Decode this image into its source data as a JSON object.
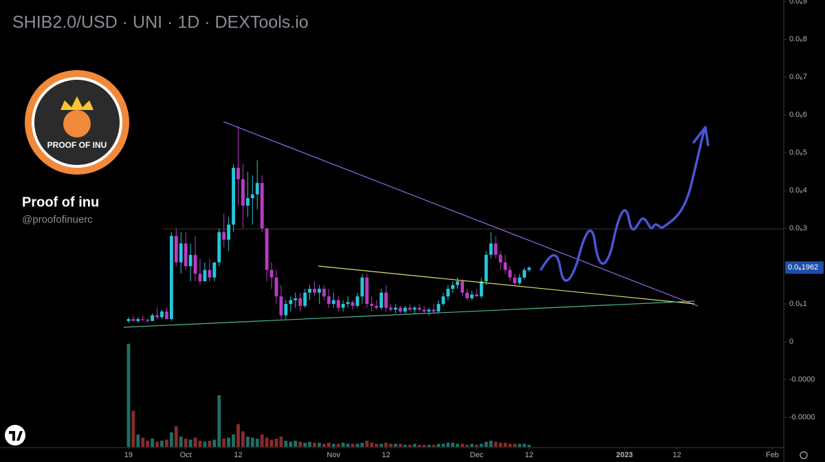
{
  "chart_data": {
    "type": "candlestick",
    "title": "SHIB2.0/USD · UNI · 1D · DEXTools.io",
    "brand": {
      "name": "Proof of inu",
      "handle": "@proofofinuerc",
      "logo_text": "PROOF OF INU"
    },
    "up_color": "#26c6da",
    "down_color": "#b93bc4",
    "volume_up_color": "#1f6f66",
    "volume_down_color": "#8a2b2b",
    "xlim": [
      -1,
      137.4
    ],
    "xticks": [
      {
        "value": 0,
        "label": "19"
      },
      {
        "value": 12,
        "label": "Oct"
      },
      {
        "value": 23,
        "label": "12"
      },
      {
        "value": 43,
        "label": "Nov"
      },
      {
        "value": 54,
        "label": "12"
      },
      {
        "value": 73,
        "label": "Dec"
      },
      {
        "value": 84,
        "label": "12"
      },
      {
        "value": 104,
        "label": "2023"
      },
      {
        "value": 115,
        "label": "12"
      },
      {
        "value": 135,
        "label": "Feb"
      }
    ],
    "ylim": [
      -2.78e-07,
      9.04e-07
    ],
    "yticks": [
      {
        "value": 9e-07,
        "label": "0.0₆9"
      },
      {
        "value": 8e-07,
        "label": "0.0₆8"
      },
      {
        "value": 7e-07,
        "label": "0.0₆7"
      },
      {
        "value": 6e-07,
        "label": "0.0₆6"
      },
      {
        "value": 5e-07,
        "label": "0.0₆5"
      },
      {
        "value": 4e-07,
        "label": "0.0₆4"
      },
      {
        "value": 3e-07,
        "label": "0.0₆3"
      },
      {
        "value": 1e-07,
        "label": "0.0₆1"
      },
      0,
      {
        "value": -1e-07,
        "label": "-0.0000"
      },
      {
        "value": -2e-07,
        "label": "-0.0000"
      }
    ],
    "last_price": {
      "value": 1.962e-07,
      "label": "0.0₆1962"
    },
    "candles": [
      [
        5.5e-08,
        6.5e-08,
        5e-08,
        6e-08
      ],
      [
        6e-08,
        7e-08,
        5.5e-08,
        5.5e-08
      ],
      [
        5.5e-08,
        6.5e-08,
        5e-08,
        6e-08
      ],
      [
        6e-08,
        7e-08,
        5.5e-08,
        5.8e-08
      ],
      [
        5.8e-08,
        6.2e-08,
        5e-08,
        5.5e-08
      ],
      [
        5.5e-08,
        7.5e-08,
        5.5e-08,
        7e-08
      ],
      [
        7e-08,
        9e-08,
        6e-08,
        6.5e-08
      ],
      [
        6.5e-08,
        8.5e-08,
        6e-08,
        8e-08
      ],
      [
        8e-08,
        9e-08,
        6e-08,
        6e-08
      ],
      [
        6e-08,
        2.9e-07,
        5.5e-08,
        2.8e-07
      ],
      [
        2.8e-07,
        3e-07,
        2e-07,
        2.1e-07
      ],
      [
        2.1e-07,
        2.9e-07,
        1.8e-07,
        2.6e-07
      ],
      [
        2.6e-07,
        2.9e-07,
        1.9e-07,
        2e-07
      ],
      [
        2e-07,
        2.6e-07,
        1.6e-07,
        2.3e-07
      ],
      [
        2.3e-07,
        2.8e-07,
        1.6e-07,
        1.8e-07
      ],
      [
        1.8e-07,
        2.2e-07,
        1.5e-07,
        1.6e-07
      ],
      [
        1.6e-07,
        2.1e-07,
        1.6e-07,
        1.9e-07
      ],
      [
        1.9e-07,
        2.2e-07,
        1.6e-07,
        1.7e-07
      ],
      [
        1.7e-07,
        2.1e-07,
        1.6e-07,
        2.1e-07
      ],
      [
        2.1e-07,
        3e-07,
        2e-07,
        2.9e-07
      ],
      [
        2.9e-07,
        3.4e-07,
        2.5e-07,
        2.7e-07
      ],
      [
        2.7e-07,
        3.3e-07,
        2.4e-07,
        3.1e-07
      ],
      [
        3.1e-07,
        4.7e-07,
        2.9e-07,
        4.6e-07
      ],
      [
        4.6e-07,
        5.7e-07,
        3.6e-07,
        4.3e-07
      ],
      [
        4.3e-07,
        4.7e-07,
        3e-07,
        3.6e-07
      ],
      [
        3.6e-07,
        4.5e-07,
        3.3e-07,
        3.8e-07
      ],
      [
        3.8e-07,
        4.4e-07,
        3.1e-07,
        3.9e-07
      ],
      [
        3.9e-07,
        4.8e-07,
        3.5e-07,
        4.2e-07
      ],
      [
        4.2e-07,
        4.4e-07,
        2.9e-07,
        3e-07
      ],
      [
        3e-07,
        3e-07,
        1.6e-07,
        1.9e-07
      ],
      [
        1.9e-07,
        2.1e-07,
        1.4e-07,
        1.7e-07
      ],
      [
        1.7e-07,
        1.9e-07,
        1e-07,
        1.2e-07
      ],
      [
        1.2e-07,
        1.5e-07,
        6e-08,
        7e-08
      ],
      [
        7e-08,
        1.1e-07,
        6e-08,
        1e-07
      ],
      [
        1e-07,
        1.2e-07,
        8e-08,
        1.1e-07
      ],
      [
        1.1e-07,
        1.3e-07,
        9e-08,
        1.15e-07
      ],
      [
        1.15e-07,
        1.3e-07,
        8e-08,
        9.5e-08
      ],
      [
        9.5e-08,
        1.4e-07,
        9e-08,
        1.3e-07
      ],
      [
        1.3e-07,
        1.5e-07,
        1.1e-07,
        1.4e-07
      ],
      [
        1.4e-07,
        1.6e-07,
        1.2e-07,
        1.3e-07
      ],
      [
        1.3e-07,
        1.5e-07,
        1e-07,
        1.4e-07
      ],
      [
        1.4e-07,
        1.5e-07,
        1.1e-07,
        1.2e-07
      ],
      [
        1.2e-07,
        1.4e-07,
        9e-08,
        1e-07
      ],
      [
        1e-07,
        1.3e-07,
        9e-08,
        1.1e-07
      ],
      [
        1.1e-07,
        1.2e-07,
        8e-08,
        9e-08
      ],
      [
        9e-08,
        1.1e-07,
        8e-08,
        1e-07
      ],
      [
        1e-07,
        1.2e-07,
        9e-08,
        1.05e-07
      ],
      [
        1.05e-07,
        1.1e-07,
        8.5e-08,
        9.5e-08
      ],
      [
        9.5e-08,
        1.3e-07,
        9e-08,
        1.2e-07
      ],
      [
        1.2e-07,
        1.8e-07,
        1e-07,
        1.7e-07
      ],
      [
        1.7e-07,
        1.8e-07,
        9e-08,
        1e-07
      ],
      [
        1e-07,
        1.2e-07,
        8e-08,
        9.5e-08
      ],
      [
        9.5e-08,
        1.1e-07,
        8.5e-08,
        9e-08
      ],
      [
        9e-08,
        1.4e-07,
        8.5e-08,
        1.3e-07
      ],
      [
        1.3e-07,
        1.5e-07,
        8e-08,
        9e-08
      ],
      [
        9e-08,
        1e-07,
        8e-08,
        8.5e-08
      ],
      [
        8.5e-08,
        1e-07,
        7.5e-08,
        9e-08
      ],
      [
        9e-08,
        9.5e-08,
        7.5e-08,
        8e-08
      ],
      [
        8e-08,
        9.5e-08,
        7.5e-08,
        9e-08
      ],
      [
        9e-08,
        1e-07,
        8e-08,
        8.5e-08
      ],
      [
        8.5e-08,
        9.5e-08,
        7.5e-08,
        9e-08
      ],
      [
        9e-08,
        1e-07,
        8e-08,
        8.5e-08
      ],
      [
        8.5e-08,
        9.5e-08,
        7.5e-08,
        8e-08
      ],
      [
        8e-08,
        9e-08,
        7e-08,
        8.5e-08
      ],
      [
        8.5e-08,
        1e-07,
        7.5e-08,
        8e-08
      ],
      [
        8e-08,
        1.1e-07,
        7.5e-08,
        1e-07
      ],
      [
        1e-07,
        1.3e-07,
        9.5e-08,
        1.2e-07
      ],
      [
        1.2e-07,
        1.5e-07,
        1.1e-07,
        1.4e-07
      ],
      [
        1.4e-07,
        1.6e-07,
        1.3e-07,
        1.5e-07
      ],
      [
        1.5e-07,
        1.7e-07,
        1.4e-07,
        1.6e-07
      ],
      [
        1.6e-07,
        1.65e-07,
        1.2e-07,
        1.3e-07
      ],
      [
        1.3e-07,
        1.4e-07,
        1.1e-07,
        1.15e-07
      ],
      [
        1.15e-07,
        1.35e-07,
        1.1e-07,
        1.25e-07
      ],
      [
        1.25e-07,
        1.4e-07,
        1.2e-07,
        1.2e-07
      ],
      [
        1.2e-07,
        1.7e-07,
        1.15e-07,
        1.6e-07
      ],
      [
        1.6e-07,
        2.4e-07,
        1.5e-07,
        2.3e-07
      ],
      [
        2.3e-07,
        2.9e-07,
        2.2e-07,
        2.6e-07
      ],
      [
        2.6e-07,
        2.8e-07,
        2.2e-07,
        2.3e-07
      ],
      [
        2.3e-07,
        2.4e-07,
        1.9e-07,
        2.1e-07
      ],
      [
        2.1e-07,
        2.3e-07,
        1.8e-07,
        1.9e-07
      ],
      [
        1.9e-07,
        2e-07,
        1.6e-07,
        1.7e-07
      ],
      [
        1.7e-07,
        1.8e-07,
        1.5e-07,
        1.55e-07
      ],
      [
        1.55e-07,
        1.8e-07,
        1.5e-07,
        1.7e-07
      ],
      [
        1.7e-07,
        1.95e-07,
        1.65e-07,
        1.9e-07
      ],
      [
        1.9e-07,
        2e-07,
        1.85e-07,
        1.96e-07
      ]
    ],
    "volume": [
      100,
      35,
      12,
      9,
      6,
      8,
      5,
      6,
      7,
      14,
      20,
      10,
      8,
      7,
      9,
      6,
      5,
      6,
      7,
      50,
      8,
      9,
      12,
      22,
      15,
      10,
      9,
      8,
      12,
      9,
      7,
      8,
      10,
      6,
      5,
      6,
      5,
      4,
      5,
      4,
      4,
      3,
      4,
      3,
      3,
      4,
      3,
      3,
      3,
      4,
      6,
      4,
      3,
      3,
      4,
      3,
      3,
      3,
      2,
      2,
      3,
      2,
      2,
      2,
      2,
      3,
      3,
      4,
      4,
      3,
      3,
      2,
      3,
      2,
      3,
      5,
      6,
      5,
      4,
      4,
      3,
      3,
      3,
      3,
      2
    ]
  }
}
